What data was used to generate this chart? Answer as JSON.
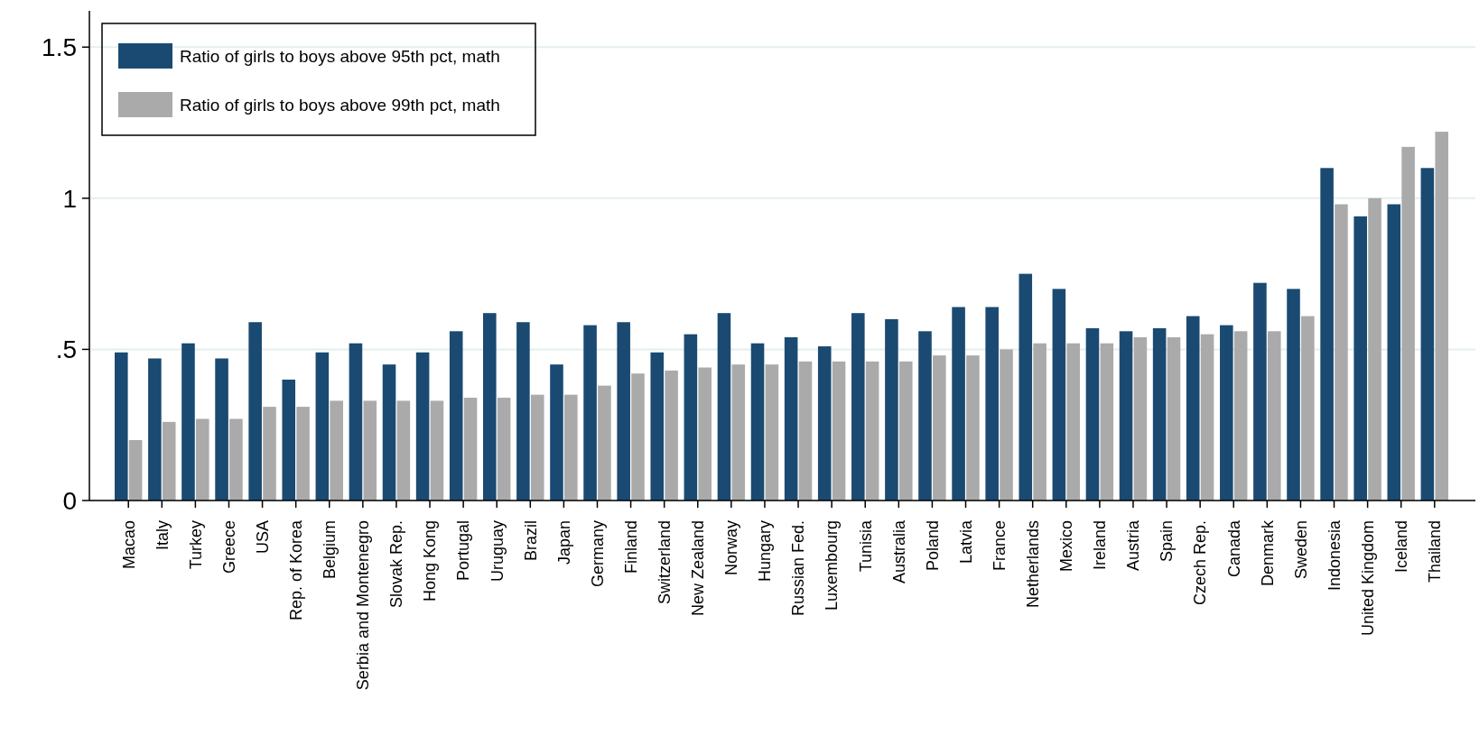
{
  "chart_data": {
    "type": "bar",
    "categories": [
      "Macao",
      "Italy",
      "Turkey",
      "Greece",
      "USA",
      "Rep. of Korea",
      "Belgium",
      "Serbia and Montenegro",
      "Slovak Rep.",
      "Hong Kong",
      "Portugal",
      "Uruguay",
      "Brazil",
      "Japan",
      "Germany",
      "Finland",
      "Switzerland",
      "New Zealand",
      "Norway",
      "Hungary",
      "Russian Fed.",
      "Luxembourg",
      "Tunisia",
      "Australia",
      "Poland",
      "Latvia",
      "France",
      "Netherlands",
      "Mexico",
      "Ireland",
      "Austria",
      "Spain",
      "Czech Rep.",
      "Canada",
      "Denmark",
      "Sweden",
      "Indonesia",
      "United Kingdom",
      "Iceland",
      "Thailand"
    ],
    "series": [
      {
        "name": "Ratio of girls to boys above 95th pct, math",
        "color": "#1a4a72",
        "values": [
          0.49,
          0.47,
          0.52,
          0.47,
          0.59,
          0.4,
          0.49,
          0.52,
          0.45,
          0.49,
          0.56,
          0.62,
          0.59,
          0.45,
          0.58,
          0.59,
          0.49,
          0.55,
          0.62,
          0.52,
          0.54,
          0.51,
          0.62,
          0.6,
          0.56,
          0.64,
          0.64,
          0.75,
          0.7,
          0.57,
          0.56,
          0.57,
          0.61,
          0.58,
          0.72,
          0.7,
          1.1,
          0.94,
          0.98,
          1.1
        ]
      },
      {
        "name": "Ratio of girls to boys above 99th pct, math",
        "color": "#aaaaaa",
        "values": [
          0.2,
          0.26,
          0.27,
          0.27,
          0.31,
          0.31,
          0.33,
          0.33,
          0.33,
          0.33,
          0.34,
          0.34,
          0.35,
          0.35,
          0.38,
          0.42,
          0.43,
          0.44,
          0.45,
          0.45,
          0.46,
          0.46,
          0.46,
          0.46,
          0.48,
          0.48,
          0.5,
          0.52,
          0.52,
          0.52,
          0.54,
          0.54,
          0.55,
          0.56,
          0.56,
          0.61,
          0.98,
          1.0,
          1.17,
          1.22
        ]
      }
    ],
    "ylim": [
      0,
      1.62
    ],
    "yticks": [
      0,
      {
        "value": 0.5,
        "label": ".5"
      },
      1,
      1.5
    ],
    "grid": "y",
    "legend": "top left"
  }
}
